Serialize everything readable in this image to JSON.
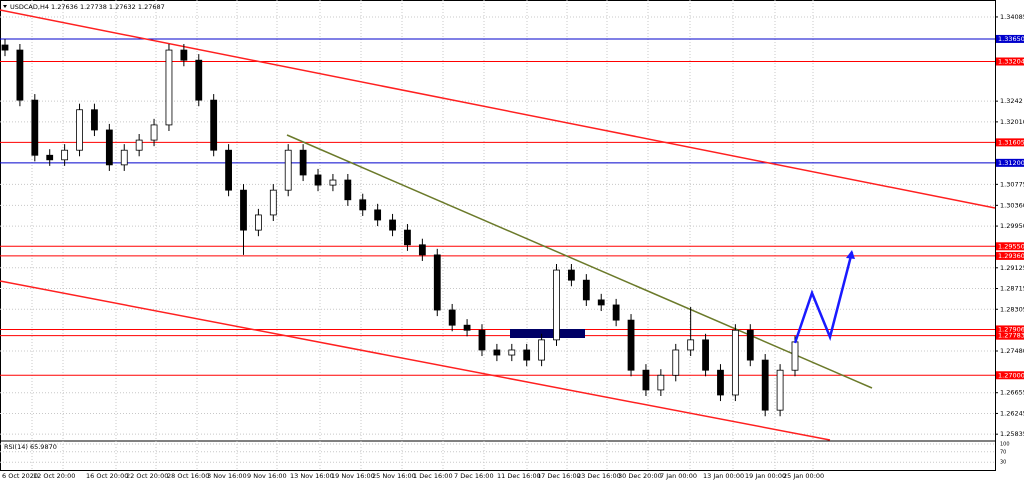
{
  "header": {
    "text": "USDCAD,H4  1.27636 1.27738 1.27632 1.27687"
  },
  "chart_data": {
    "type": "candlestick",
    "open": [
      1.3353,
      1.3343,
      1.3244,
      1.3135,
      1.3126,
      1.3145,
      1.3225,
      1.3185,
      1.3116,
      1.3145,
      1.3165,
      1.3195,
      1.3343,
      1.3323,
      1.3244,
      1.3145,
      1.3066,
      1.2987,
      1.3017,
      1.3066,
      1.3145,
      1.3096,
      1.3076,
      1.3086,
      1.3047,
      1.3027,
      1.3007,
      1.2987,
      1.2958,
      1.2938,
      1.2829,
      1.2799,
      1.2789,
      1.275,
      1.274,
      1.275,
      1.273,
      1.277,
      1.2908,
      1.2888,
      1.2849,
      1.2839,
      1.2809,
      1.271,
      1.2671,
      1.27,
      1.275,
      1.277,
      1.271,
      1.2661,
      1.2789,
      1.273,
      1.2631,
      1.271
    ],
    "high": [
      1.3365,
      1.3355,
      1.3256,
      1.3147,
      1.3157,
      1.3237,
      1.3237,
      1.3197,
      1.3157,
      1.3177,
      1.3207,
      1.3355,
      1.3355,
      1.3335,
      1.3256,
      1.3157,
      1.3078,
      1.3029,
      1.3078,
      1.3157,
      1.3157,
      1.3108,
      1.3098,
      1.3098,
      1.3059,
      1.3039,
      1.3019,
      1.2999,
      1.297,
      1.295,
      1.2841,
      1.2811,
      1.2801,
      1.2762,
      1.2762,
      1.2762,
      1.2782,
      1.292,
      1.292,
      1.29,
      1.2861,
      1.2851,
      1.2821,
      1.2722,
      1.2712,
      1.2762,
      1.2835,
      1.2782,
      1.2722,
      1.2801,
      1.2801,
      1.2742,
      1.2722,
      1.2778
    ],
    "low": [
      1.3331,
      1.3232,
      1.3123,
      1.3114,
      1.3114,
      1.3133,
      1.3173,
      1.3104,
      1.3104,
      1.3133,
      1.3153,
      1.3183,
      1.3311,
      1.3232,
      1.3133,
      1.3054,
      1.2938,
      1.2975,
      1.3005,
      1.3054,
      1.3084,
      1.3064,
      1.3064,
      1.3035,
      1.3015,
      1.2995,
      1.2975,
      1.2946,
      1.2926,
      1.2817,
      1.2787,
      1.2777,
      1.2738,
      1.2728,
      1.2728,
      1.2718,
      1.2718,
      1.2758,
      1.2876,
      1.2837,
      1.2827,
      1.2797,
      1.2698,
      1.2659,
      1.2659,
      1.2688,
      1.2738,
      1.2698,
      1.2649,
      1.2649,
      1.2718,
      1.2619,
      1.2619,
      1.2698
    ],
    "close": [
      1.3343,
      1.3244,
      1.3135,
      1.3126,
      1.3145,
      1.3225,
      1.3185,
      1.3116,
      1.3145,
      1.3165,
      1.3195,
      1.3343,
      1.3323,
      1.3244,
      1.3145,
      1.3066,
      1.2987,
      1.3017,
      1.3066,
      1.3145,
      1.3096,
      1.3076,
      1.3086,
      1.3047,
      1.3027,
      1.3007,
      1.2987,
      1.2958,
      1.2938,
      1.2829,
      1.2799,
      1.2789,
      1.275,
      1.274,
      1.275,
      1.273,
      1.277,
      1.2908,
      1.2888,
      1.2849,
      1.2839,
      1.2809,
      1.271,
      1.2671,
      1.27,
      1.275,
      1.277,
      1.271,
      1.2661,
      1.2789,
      1.273,
      1.2631,
      1.271,
      1.2766
    ],
    "ylim": [
      1.2572,
      1.3442
    ],
    "yticks": [
      1.34085,
      1.3242,
      {
        "value": 1.3201,
        "label": "1.32010"
      },
      1.30775,
      {
        "value": 1.3036,
        "label": "1.30360"
      },
      {
        "value": 1.2995,
        "label": "1.29950"
      },
      1.29125,
      1.28715,
      1.28305,
      {
        "value": 1.2748,
        "label": "1.27480"
      },
      1.26655,
      1.26245,
      1.25835
    ],
    "levels": [
      {
        "value": 1.3365,
        "label": "1.33650",
        "color": "#0000cc"
      },
      {
        "value": 1.33204,
        "label": "1.33204",
        "color": "#ff0000"
      },
      {
        "value": 1.31605,
        "label": "1.31605",
        "color": "#ff0000"
      },
      {
        "value": 1.312,
        "label": "1.31200",
        "color": "#0000cc"
      },
      {
        "value": 1.2955,
        "label": "1.29550",
        "color": "#ff0000"
      },
      {
        "value": 1.2936,
        "label": "1.29360",
        "color": "#ff0000"
      },
      {
        "value": 1.27906,
        "label": "1.27906",
        "color": "#ff0000"
      },
      {
        "value": 1.27783,
        "label": "1.27783",
        "color": "#ff0000"
      },
      {
        "value": 1.27,
        "label": "1.27000",
        "color": "#ff0000"
      }
    ],
    "x_labels": [
      "6 Oct 2020",
      "12 Oct 20:00",
      "16 Oct 20:00",
      "22 Oct 20:00",
      "28 Oct 16:00",
      "3 Nov 16:00",
      "9 Nov 16:00",
      "13 Nov 16:00",
      "19 Nov 16:00",
      "25 Nov 16:00",
      "1 Dec 16:00",
      "7 Dec 16:00",
      "11 Dec 16:00",
      "17 Dec 16:00",
      "23 Dec 16:00",
      "30 Dec 20:00",
      "7 Jan 00:00",
      "13 Jan 00:00",
      "19 Jan 00:00",
      "25 Jan 00:00"
    ],
    "rsi": {
      "label": "RSI(14) 65.9870",
      "ylim": [
        0,
        100
      ],
      "yticks": [
        100,
        70,
        30
      ]
    }
  }
}
